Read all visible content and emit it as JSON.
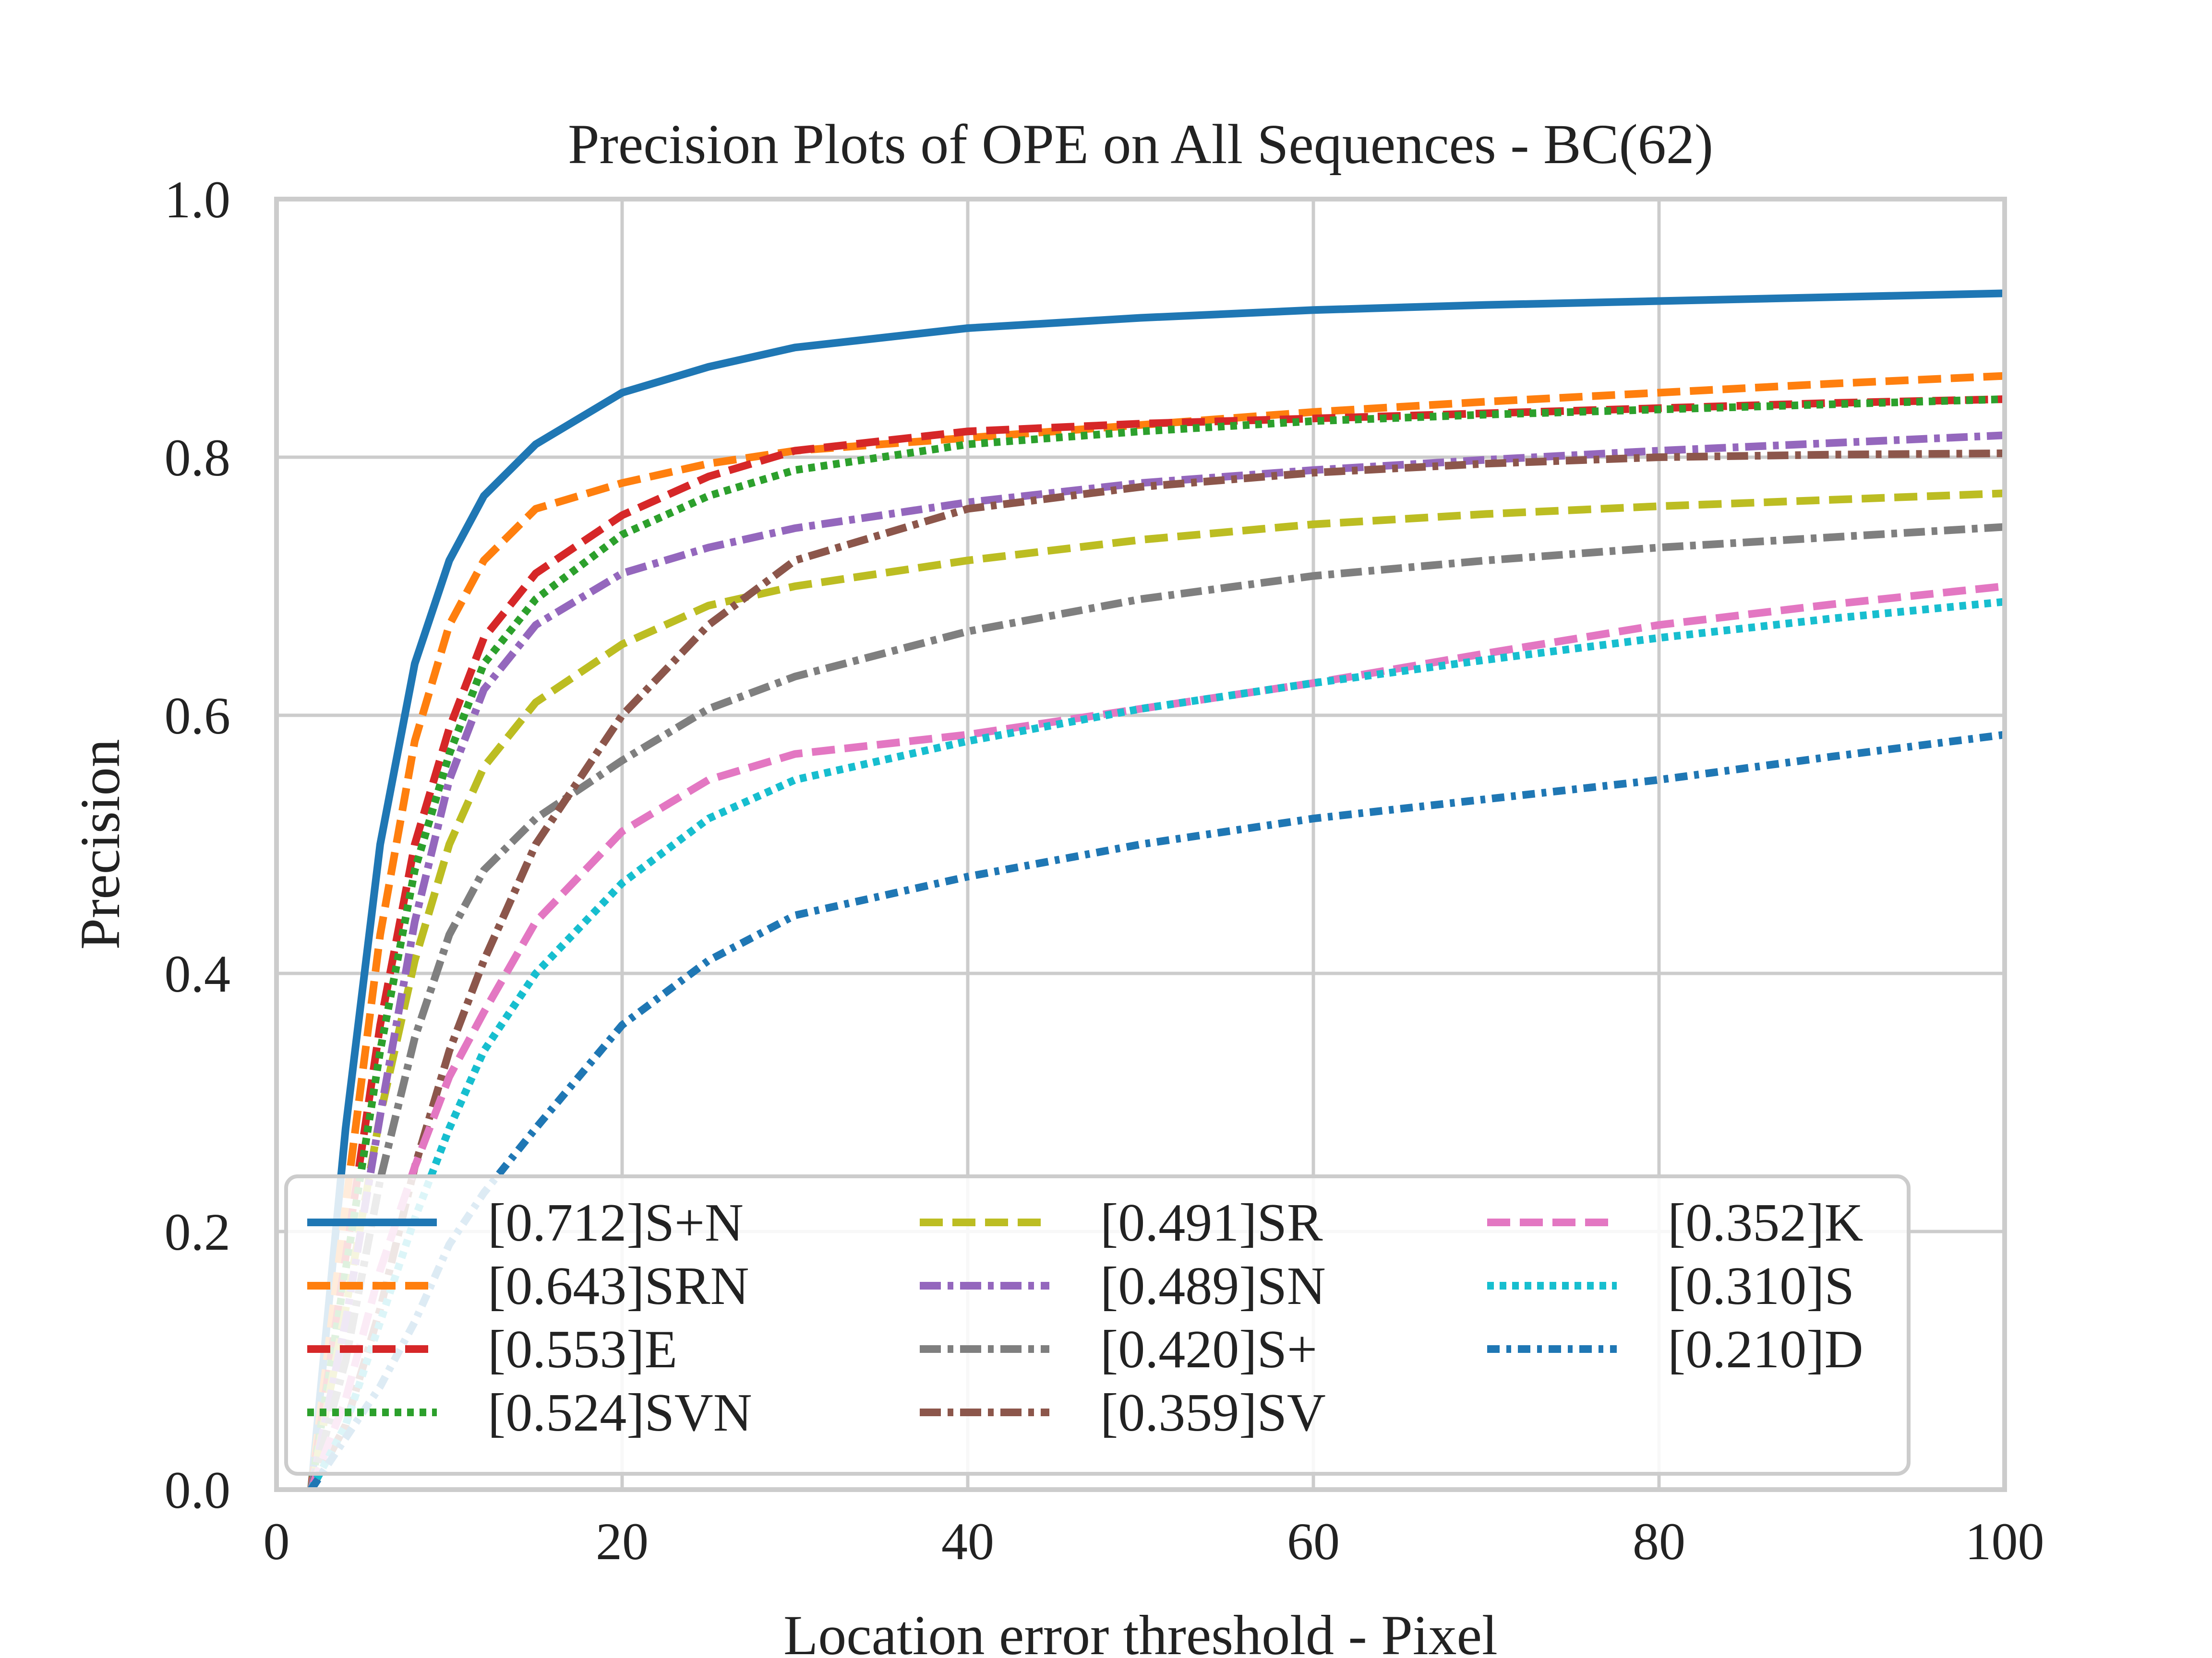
{
  "chart_data": {
    "type": "line",
    "title": "Precision Plots of OPE on All Sequences - BC(62)",
    "xlabel": "Location error threshold - Pixel",
    "ylabel": "Precision",
    "xlim": [
      0,
      100
    ],
    "ylim": [
      0,
      1
    ],
    "xticks": [
      "0",
      "20",
      "40",
      "60",
      "80",
      "100"
    ],
    "yticks": [
      "0.0",
      "0.2",
      "0.4",
      "0.6",
      "0.8",
      "1.0"
    ],
    "grid": true,
    "legend_position": "lower-left",
    "legend_columns": 3,
    "x": [
      2,
      4,
      6,
      8,
      10,
      12,
      15,
      20,
      25,
      30,
      40,
      50,
      60,
      70,
      80,
      90,
      100
    ],
    "series": [
      {
        "name": "[0.712]S+N",
        "color": "#1f77b4",
        "dash": "solid",
        "values": [
          0.0,
          0.28,
          0.5,
          0.64,
          0.72,
          0.77,
          0.81,
          0.85,
          0.87,
          0.885,
          0.9,
          0.908,
          0.914,
          0.918,
          0.921,
          0.924,
          0.927
        ]
      },
      {
        "name": "[0.643]SRN",
        "color": "#ff7f0e",
        "dash": "dashed",
        "values": [
          0.0,
          0.22,
          0.43,
          0.58,
          0.67,
          0.72,
          0.76,
          0.78,
          0.795,
          0.805,
          0.815,
          0.825,
          0.835,
          0.843,
          0.85,
          0.857,
          0.863
        ]
      },
      {
        "name": "[0.553]E",
        "color": "#d62728",
        "dash": "dashed",
        "values": [
          0.0,
          0.18,
          0.36,
          0.5,
          0.59,
          0.66,
          0.71,
          0.755,
          0.785,
          0.805,
          0.82,
          0.826,
          0.83,
          0.834,
          0.838,
          0.842,
          0.845
        ]
      },
      {
        "name": "[0.524]SVN",
        "color": "#2ca02c",
        "dash": "dotted",
        "values": [
          0.0,
          0.17,
          0.34,
          0.48,
          0.57,
          0.64,
          0.69,
          0.74,
          0.77,
          0.79,
          0.81,
          0.82,
          0.828,
          0.833,
          0.837,
          0.841,
          0.845
        ]
      },
      {
        "name": "[0.491]SR",
        "color": "#bcbd22",
        "dash": "dashed",
        "values": [
          0.0,
          0.14,
          0.29,
          0.41,
          0.5,
          0.56,
          0.61,
          0.655,
          0.685,
          0.7,
          0.72,
          0.736,
          0.748,
          0.756,
          0.762,
          0.767,
          0.772
        ]
      },
      {
        "name": "[0.489]SN",
        "color": "#9467bd",
        "dash": "dashdot",
        "values": [
          0.0,
          0.13,
          0.29,
          0.44,
          0.55,
          0.62,
          0.67,
          0.71,
          0.73,
          0.745,
          0.765,
          0.78,
          0.79,
          0.798,
          0.805,
          0.811,
          0.817
        ]
      },
      {
        "name": "[0.420]S+",
        "color": "#7f7f7f",
        "dash": "dashdot",
        "values": [
          0.0,
          0.1,
          0.24,
          0.35,
          0.43,
          0.48,
          0.52,
          0.565,
          0.605,
          0.63,
          0.665,
          0.69,
          0.708,
          0.72,
          0.73,
          0.738,
          0.746
        ]
      },
      {
        "name": "[0.359]SV",
        "color": "#8c564b",
        "dash": "dashdot",
        "values": [
          0.0,
          0.05,
          0.14,
          0.25,
          0.34,
          0.41,
          0.5,
          0.6,
          0.67,
          0.72,
          0.76,
          0.777,
          0.788,
          0.795,
          0.8,
          0.802,
          0.803
        ]
      },
      {
        "name": "[0.352]K",
        "color": "#e377c2",
        "dash": "dashed",
        "values": [
          0.0,
          0.07,
          0.17,
          0.25,
          0.32,
          0.37,
          0.44,
          0.51,
          0.55,
          0.57,
          0.585,
          0.605,
          0.625,
          0.648,
          0.67,
          0.686,
          0.7
        ]
      },
      {
        "name": "[0.310]S",
        "color": "#17becf",
        "dash": "dotted",
        "values": [
          0.0,
          0.05,
          0.13,
          0.21,
          0.28,
          0.34,
          0.4,
          0.47,
          0.52,
          0.55,
          0.58,
          0.605,
          0.625,
          0.643,
          0.66,
          0.675,
          0.688
        ]
      },
      {
        "name": "[0.210]D",
        "color": "#1f77b4",
        "dash": "dashdotted",
        "values": [
          0.0,
          0.04,
          0.08,
          0.13,
          0.19,
          0.23,
          0.28,
          0.36,
          0.41,
          0.445,
          0.475,
          0.5,
          0.52,
          0.535,
          0.55,
          0.568,
          0.585
        ]
      }
    ]
  }
}
